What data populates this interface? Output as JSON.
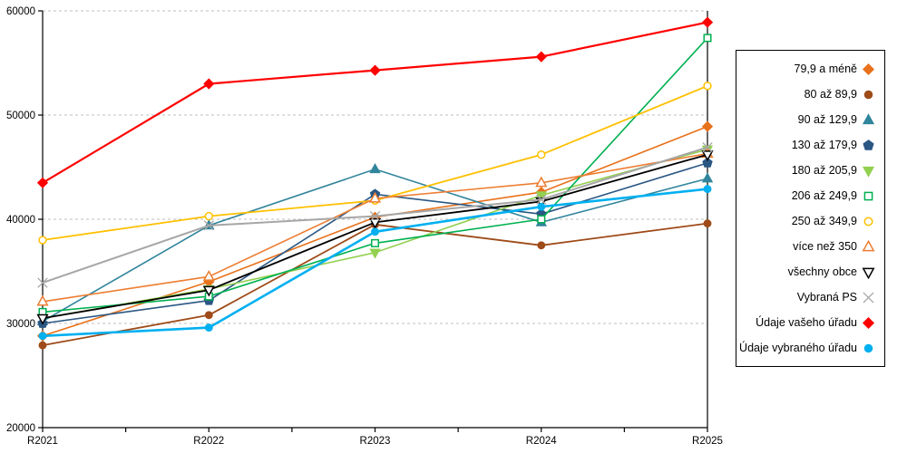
{
  "chart_data": {
    "type": "line",
    "title": "",
    "xlabel": "",
    "ylabel": "",
    "categories": [
      "R2021",
      "R2022",
      "R2023",
      "R2024",
      "R2025"
    ],
    "ylim": [
      20000,
      60000
    ],
    "ytick_step": 10000,
    "ytick_labels": [
      "20000",
      "30000",
      "40000",
      "50000",
      "60000"
    ],
    "grid": "horizontal-dashed",
    "legend_position": "right-box",
    "series": [
      {
        "name": "79,9 a méně",
        "color": "#E8721C",
        "marker": "diamond",
        "fill": "solid",
        "line_width": 1.6,
        "values": [
          28800,
          34000,
          40200,
          42600,
          48900
        ]
      },
      {
        "name": "80 až 89,9",
        "color": "#9E4B19",
        "marker": "circle",
        "fill": "solid",
        "line_width": 1.8,
        "values": [
          27900,
          30800,
          39500,
          37500,
          39600
        ]
      },
      {
        "name": "90 až 129,9",
        "color": "#31859C",
        "marker": "triangle-up",
        "fill": "solid",
        "line_width": 1.6,
        "values": [
          30200,
          39400,
          44800,
          39700,
          43900
        ]
      },
      {
        "name": "130 až 179,9",
        "color": "#2A5783",
        "marker": "pentagon",
        "fill": "solid",
        "line_width": 1.6,
        "values": [
          30000,
          32200,
          42400,
          40500,
          45400
        ]
      },
      {
        "name": "180 až 205,9",
        "color": "#92D050",
        "marker": "triangle-down",
        "fill": "solid",
        "line_width": 1.6,
        "values": [
          30500,
          33300,
          36800,
          42300,
          46700
        ]
      },
      {
        "name": "206 až 249,9",
        "color": "#00B050",
        "marker": "square",
        "fill": "open",
        "line_width": 1.6,
        "values": [
          31100,
          32600,
          37700,
          40000,
          57400
        ]
      },
      {
        "name": "250 až 349,9",
        "color": "#FFC000",
        "marker": "circle",
        "fill": "open",
        "line_width": 1.8,
        "values": [
          38000,
          40300,
          41800,
          46200,
          52800
        ]
      },
      {
        "name": "více než 350",
        "color": "#ED7D31",
        "marker": "triangle-up",
        "fill": "open",
        "line_width": 1.6,
        "values": [
          32100,
          34500,
          42000,
          43500,
          46300
        ]
      },
      {
        "name": "všechny obce",
        "color": "#000000",
        "marker": "triangle-down",
        "fill": "open",
        "line_width": 1.8,
        "values": [
          30500,
          33200,
          39700,
          41700,
          46200
        ]
      },
      {
        "name": "Vybraná PS",
        "color": "#A6A6A6",
        "marker": "x",
        "fill": "open",
        "line_width": 2.0,
        "values": [
          33900,
          39400,
          40300,
          41900,
          46900
        ]
      },
      {
        "name": "Údaje vašeho úřadu",
        "color": "#FF0000",
        "marker": "diamond",
        "fill": "solid",
        "line_width": 2.2,
        "values": [
          43500,
          53000,
          54300,
          55600,
          58900
        ]
      },
      {
        "name": "Údaje vybraného úřadu",
        "color": "#00B0F0",
        "marker": "circle",
        "fill": "solid",
        "line_width": 2.6,
        "values": [
          28800,
          29600,
          38800,
          41200,
          42900
        ]
      }
    ],
    "axis_color": "#000000",
    "grid_color": "#BFBFBF"
  }
}
